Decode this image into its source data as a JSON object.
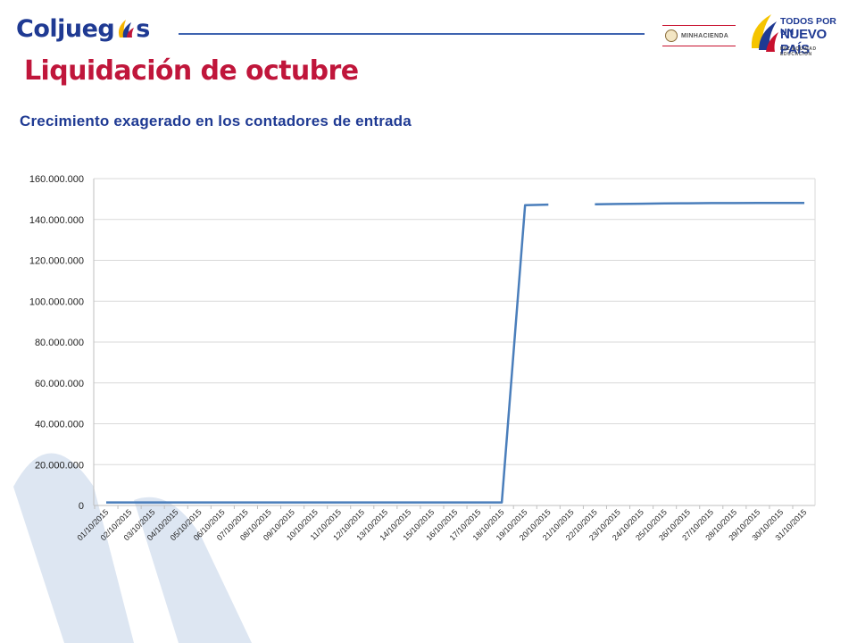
{
  "header": {
    "brand": {
      "text_left": "Coljueg",
      "text_right": "s"
    },
    "ministry": {
      "text": "MINHACIENDA"
    },
    "government": {
      "line1": "TODOS POR UN",
      "line2": "NUEVO PAÍS",
      "line3": "PAZ  EQUIDAD  EDUCACIÓN"
    }
  },
  "slide": {
    "title": "Liquidación de octubre",
    "subtitle": "Crecimiento exagerado en los contadores de entrada"
  },
  "colors": {
    "title": "#c0163b",
    "subtitle": "#1f3a93",
    "series": "#4a7ebb",
    "gridline": "#d9d9d9",
    "watermark": "#dde6f2"
  },
  "chart_data": {
    "type": "line",
    "x": [
      "01/10/2015",
      "02/10/2015",
      "03/10/2015",
      "04/10/2015",
      "05/10/2015",
      "06/10/2015",
      "07/10/2015",
      "08/10/2015",
      "09/10/2015",
      "10/10/2015",
      "11/10/2015",
      "12/10/2015",
      "13/10/2015",
      "14/10/2015",
      "15/10/2015",
      "16/10/2015",
      "17/10/2015",
      "18/10/2015",
      "19/10/2015",
      "20/10/2015",
      "21/10/2015",
      "22/10/2015",
      "23/10/2015",
      "24/10/2015",
      "25/10/2015",
      "26/10/2015",
      "27/10/2015",
      "28/10/2015",
      "29/10/2015",
      "30/10/2015",
      "31/10/2015"
    ],
    "series": [
      {
        "values": [
          1500000,
          1500000,
          1500000,
          1500000,
          1500000,
          1500000,
          1500000,
          1500000,
          1500000,
          1500000,
          1500000,
          1500000,
          1500000,
          1500000,
          1500000,
          1500000,
          1500000,
          1500000,
          147000000,
          147300000,
          null,
          147400000,
          147600000,
          147700000,
          147900000,
          147950000,
          148000000,
          148000000,
          148050000,
          148050000,
          148100000
        ]
      }
    ],
    "yticks": [
      "0",
      "20.000.000",
      "40.000.000",
      "60.000.000",
      "80.000.000",
      "100.000.000",
      "120.000.000",
      "140.000.000",
      "160.000.000"
    ],
    "ylim": [
      0,
      160000000
    ],
    "grid": true,
    "legend": "none"
  }
}
